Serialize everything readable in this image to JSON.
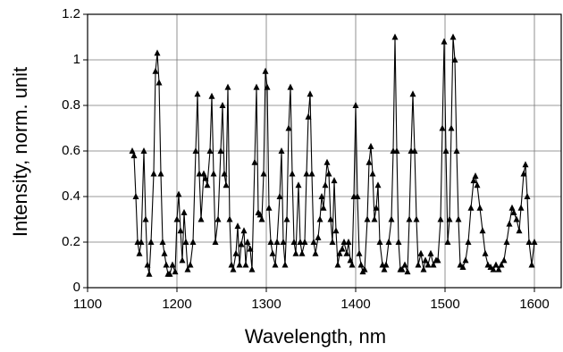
{
  "chart_data": {
    "type": "line",
    "xlabel": "Wavelength, nm",
    "ylabel": "Intensity, norm. unit",
    "xlim": [
      1100,
      1630
    ],
    "ylim": [
      0,
      1.2
    ],
    "xticks": [
      1100,
      1200,
      1300,
      1400,
      1500,
      1600
    ],
    "yticks": [
      0,
      0.2,
      0.4,
      0.6,
      0.8,
      1,
      1.2
    ],
    "grid": true,
    "marker": "triangle",
    "x": [
      1150,
      1152,
      1154,
      1156,
      1158,
      1160,
      1163,
      1165,
      1167,
      1169,
      1171,
      1174,
      1176,
      1178,
      1180,
      1182,
      1184,
      1186,
      1188,
      1190,
      1192,
      1195,
      1198,
      1200,
      1202,
      1204,
      1206,
      1208,
      1210,
      1212,
      1215,
      1218,
      1221,
      1223,
      1225,
      1227,
      1230,
      1232,
      1234,
      1237,
      1239,
      1241,
      1243,
      1246,
      1249,
      1251,
      1253,
      1255,
      1257,
      1259,
      1261,
      1263,
      1266,
      1268,
      1270,
      1272,
      1275,
      1277,
      1279,
      1282,
      1284,
      1287,
      1289,
      1291,
      1293,
      1295,
      1297,
      1299,
      1301,
      1303,
      1305,
      1307,
      1310,
      1312,
      1315,
      1317,
      1319,
      1321,
      1323,
      1325,
      1327,
      1329,
      1331,
      1333,
      1336,
      1338,
      1340,
      1343,
      1345,
      1347,
      1349,
      1351,
      1353,
      1355,
      1358,
      1360,
      1362,
      1364,
      1366,
      1368,
      1370,
      1372,
      1374,
      1376,
      1378,
      1380,
      1382,
      1385,
      1387,
      1390,
      1392,
      1394,
      1396,
      1398,
      1400,
      1402,
      1404,
      1406,
      1408,
      1410,
      1413,
      1415,
      1417,
      1419,
      1421,
      1423,
      1425,
      1427,
      1430,
      1432,
      1434,
      1437,
      1440,
      1442,
      1444,
      1446,
      1448,
      1450,
      1452,
      1455,
      1458,
      1460,
      1462,
      1464,
      1466,
      1468,
      1470,
      1473,
      1476,
      1478,
      1481,
      1484,
      1487,
      1490,
      1492,
      1495,
      1497,
      1499,
      1501,
      1503,
      1505,
      1507,
      1509,
      1511,
      1513,
      1515,
      1517,
      1520,
      1523,
      1526,
      1529,
      1532,
      1534,
      1536,
      1539,
      1542,
      1545,
      1548,
      1551,
      1554,
      1557,
      1560,
      1563,
      1566,
      1569,
      1572,
      1575,
      1577,
      1580,
      1583,
      1585,
      1588,
      1590,
      1592,
      1594,
      1597,
      1600
    ],
    "series": [
      {
        "color": "#000000",
        "values": [
          0.6,
          0.58,
          0.4,
          0.2,
          0.15,
          0.2,
          0.6,
          0.3,
          0.1,
          0.06,
          0.2,
          0.5,
          0.95,
          1.03,
          0.9,
          0.5,
          0.2,
          0.15,
          0.1,
          0.06,
          0.06,
          0.1,
          0.07,
          0.3,
          0.41,
          0.25,
          0.12,
          0.33,
          0.2,
          0.08,
          0.1,
          0.2,
          0.6,
          0.85,
          0.5,
          0.3,
          0.5,
          0.48,
          0.45,
          0.6,
          0.84,
          0.5,
          0.2,
          0.3,
          0.6,
          0.8,
          0.5,
          0.45,
          0.88,
          0.3,
          0.1,
          0.08,
          0.15,
          0.27,
          0.1,
          0.19,
          0.25,
          0.1,
          0.2,
          0.17,
          0.08,
          0.55,
          0.88,
          0.33,
          0.32,
          0.3,
          0.5,
          0.95,
          0.88,
          0.35,
          0.2,
          0.15,
          0.1,
          0.2,
          0.4,
          0.6,
          0.2,
          0.1,
          0.3,
          0.7,
          0.88,
          0.5,
          0.2,
          0.15,
          0.45,
          0.2,
          0.15,
          0.2,
          0.5,
          0.75,
          0.85,
          0.5,
          0.2,
          0.15,
          0.22,
          0.3,
          0.4,
          0.35,
          0.45,
          0.55,
          0.5,
          0.3,
          0.2,
          0.47,
          0.25,
          0.1,
          0.15,
          0.17,
          0.2,
          0.15,
          0.2,
          0.12,
          0.1,
          0.4,
          0.8,
          0.4,
          0.15,
          0.1,
          0.07,
          0.08,
          0.3,
          0.55,
          0.62,
          0.5,
          0.3,
          0.35,
          0.45,
          0.2,
          0.1,
          0.08,
          0.1,
          0.2,
          0.3,
          0.6,
          1.1,
          0.6,
          0.2,
          0.08,
          0.08,
          0.1,
          0.07,
          0.3,
          0.6,
          0.85,
          0.6,
          0.3,
          0.1,
          0.15,
          0.08,
          0.12,
          0.1,
          0.15,
          0.1,
          0.12,
          0.12,
          0.3,
          0.7,
          1.08,
          0.6,
          0.2,
          0.3,
          0.7,
          1.1,
          1.0,
          0.6,
          0.3,
          0.1,
          0.09,
          0.12,
          0.2,
          0.35,
          0.47,
          0.49,
          0.45,
          0.35,
          0.25,
          0.15,
          0.1,
          0.09,
          0.08,
          0.1,
          0.08,
          0.1,
          0.12,
          0.2,
          0.28,
          0.35,
          0.33,
          0.3,
          0.25,
          0.35,
          0.5,
          0.54,
          0.4,
          0.2,
          0.1,
          0.2
        ]
      }
    ]
  }
}
